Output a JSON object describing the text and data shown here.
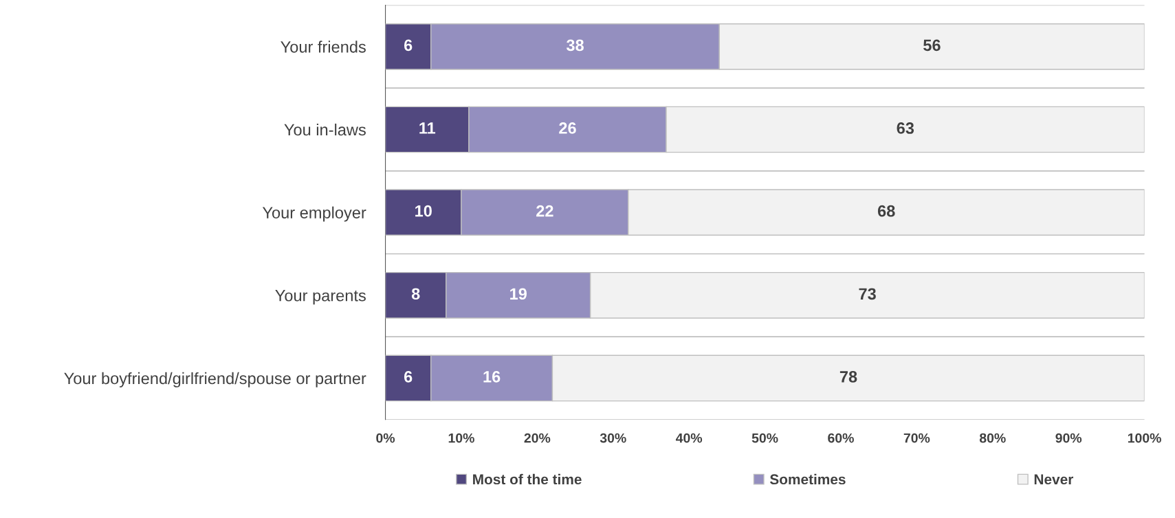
{
  "chart_data": {
    "type": "bar",
    "orientation": "horizontal",
    "stacked": true,
    "categories": [
      "Your friends",
      "You in-laws",
      "Your employer",
      "Your parents",
      "Your boyfriend/girlfriend/spouse or partner"
    ],
    "series": [
      {
        "name": "Most of the time",
        "color": "#51487f",
        "values": [
          6,
          11,
          10,
          8,
          6
        ]
      },
      {
        "name": "Sometimes",
        "color": "#948fbf",
        "values": [
          38,
          26,
          22,
          19,
          16
        ]
      },
      {
        "name": "Never",
        "color": "#f2f2f2",
        "values": [
          56,
          63,
          68,
          73,
          78
        ]
      }
    ],
    "xlim": [
      0,
      100
    ],
    "xticks": [
      {
        "value": 0,
        "label": "0%"
      },
      {
        "value": 10,
        "label": "10%"
      },
      {
        "value": 20,
        "label": "20%"
      },
      {
        "value": 30,
        "label": "30%"
      },
      {
        "value": 40,
        "label": "40%"
      },
      {
        "value": 50,
        "label": "50%"
      },
      {
        "value": 60,
        "label": "60%"
      },
      {
        "value": 70,
        "label": "70%"
      },
      {
        "value": 80,
        "label": "80%"
      },
      {
        "value": 90,
        "label": "90%"
      },
      {
        "value": 100,
        "label": "100%"
      }
    ],
    "data_labels": true,
    "grid": "y",
    "legend": "bottom"
  }
}
